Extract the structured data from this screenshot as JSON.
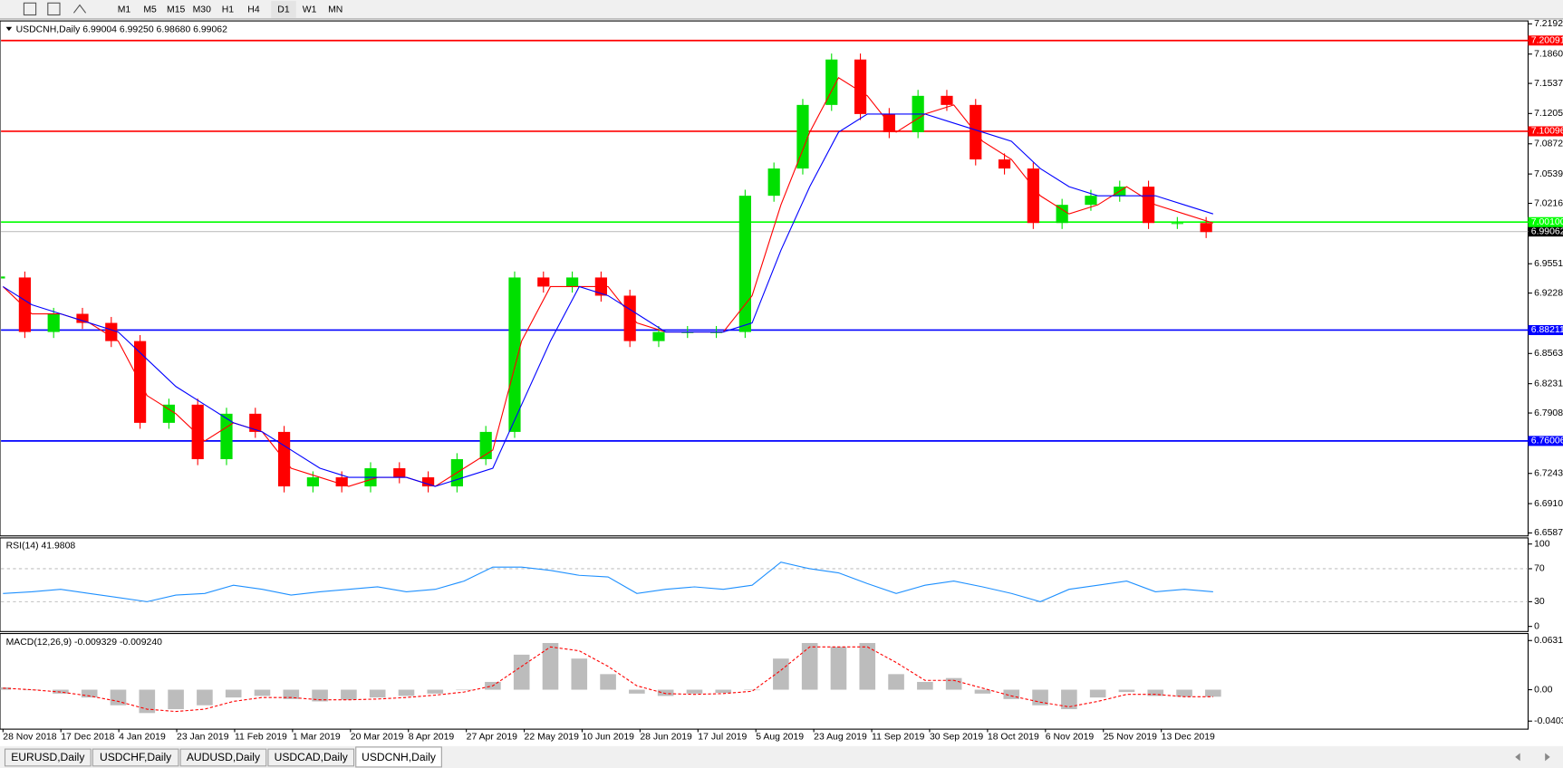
{
  "toolbar": {
    "timeframes": [
      "M1",
      "M5",
      "M15",
      "M30",
      "H1",
      "H4",
      "D1",
      "W1",
      "MN"
    ]
  },
  "chart_data": {
    "type": "candlestick",
    "header": "USDCNH,Daily  6.99004 6.99250 6.98680 6.99062",
    "x_labels": [
      "28 Nov 2018",
      "17 Dec 2018",
      "4 Jan 2019",
      "23 Jan 2019",
      "11 Feb 2019",
      "1 Mar 2019",
      "20 Mar 2019",
      "8 Apr 2019",
      "27 Apr 2019",
      "22 May 2019",
      "10 Jun 2019",
      "28 Jun 2019",
      "17 Jul 2019",
      "5 Aug 2019",
      "23 Aug 2019",
      "11 Sep 2019",
      "30 Sep 2019",
      "18 Oct 2019",
      "6 Nov 2019",
      "25 Nov 2019",
      "13 Dec 2019"
    ],
    "close": [
      6.94,
      6.88,
      6.9,
      6.89,
      6.87,
      6.78,
      6.8,
      6.74,
      6.79,
      6.77,
      6.71,
      6.72,
      6.71,
      6.73,
      6.72,
      6.71,
      6.74,
      6.77,
      6.94,
      6.93,
      6.94,
      6.92,
      6.87,
      6.88,
      6.88,
      6.88,
      7.03,
      7.06,
      7.13,
      7.18,
      7.12,
      7.1,
      7.14,
      7.13,
      7.07,
      7.06,
      7.0,
      7.02,
      7.03,
      7.04,
      7.0,
      7.0,
      6.99
    ],
    "up_color": "#00e000",
    "down_color": "#ff0000",
    "ma_fast": {
      "color": "#ff0000",
      "values": [
        6.93,
        6.9,
        6.9,
        6.89,
        6.87,
        6.81,
        6.79,
        6.76,
        6.78,
        6.77,
        6.73,
        6.72,
        6.71,
        6.72,
        6.72,
        6.71,
        6.73,
        6.75,
        6.87,
        6.93,
        6.93,
        6.93,
        6.89,
        6.88,
        6.88,
        6.88,
        6.92,
        7.02,
        7.1,
        7.16,
        7.14,
        7.1,
        7.12,
        7.13,
        7.09,
        7.07,
        7.03,
        7.01,
        7.02,
        7.04,
        7.02,
        7.01,
        7.0
      ]
    },
    "ma_slow": {
      "color": "#0000ff",
      "values": [
        6.93,
        6.91,
        6.9,
        6.89,
        6.88,
        6.85,
        6.82,
        6.8,
        6.78,
        6.77,
        6.75,
        6.73,
        6.72,
        6.72,
        6.72,
        6.71,
        6.72,
        6.73,
        6.8,
        6.87,
        6.93,
        6.92,
        6.9,
        6.88,
        6.88,
        6.88,
        6.89,
        6.97,
        7.04,
        7.1,
        7.12,
        7.12,
        7.12,
        7.11,
        7.1,
        7.09,
        7.06,
        7.04,
        7.03,
        7.03,
        7.03,
        7.02,
        7.01
      ]
    },
    "ylim": [
      6.6555,
      7.2214
    ],
    "yticks": [
      {
        "value": 7.21925,
        "label": "7.21925"
      },
      {
        "value": 7.186,
        "label": "7.18600"
      },
      {
        "value": 7.1537,
        "label": "7.15370"
      },
      {
        "value": 7.12055,
        "label": "7.12055"
      },
      {
        "value": 7.0872,
        "label": "7.08720"
      },
      {
        "value": 7.05395,
        "label": "7.05395"
      },
      {
        "value": 7.02165,
        "label": "7.02165"
      },
      {
        "value": 6.95515,
        "label": "6.95515"
      },
      {
        "value": 6.92285,
        "label": "6.92285"
      },
      {
        "value": 6.85635,
        "label": "6.85635"
      },
      {
        "value": 6.8231,
        "label": "6.82310"
      },
      {
        "value": 6.7908,
        "label": "6.79080"
      },
      {
        "value": 6.7243,
        "label": "6.72430"
      },
      {
        "value": 6.69105,
        "label": "6.69105"
      },
      {
        "value": 6.65875,
        "label": "6.65875"
      }
    ],
    "levels": [
      {
        "value": 7.20091,
        "label": "7.20091",
        "color": "#ff0000"
      },
      {
        "value": 7.10096,
        "label": "7.10096",
        "color": "#ff0000"
      },
      {
        "value": 7.001,
        "label": "7.00100",
        "color": "#00ff00"
      },
      {
        "value": 6.88211,
        "label": "6.88211",
        "color": "#0000ff"
      },
      {
        "value": 6.76006,
        "label": "6.76006",
        "color": "#0000ff"
      }
    ],
    "current": {
      "value": 6.99062,
      "label": "6.99062"
    },
    "rsi": {
      "label": "RSI(14) 41.9808",
      "color": "#1e90ff",
      "ylim": [
        -6.2,
        107.4
      ],
      "yticks": [
        100,
        70,
        30,
        0
      ],
      "levels": [
        70,
        30
      ],
      "values": [
        40,
        42,
        45,
        40,
        35,
        30,
        38,
        40,
        50,
        45,
        38,
        42,
        45,
        48,
        42,
        45,
        55,
        72,
        72,
        68,
        62,
        60,
        40,
        45,
        48,
        45,
        50,
        78,
        70,
        65,
        52,
        40,
        50,
        55,
        48,
        40,
        30,
        45,
        50,
        55,
        42,
        45,
        42
      ]
    },
    "macd": {
      "label": "MACD(12,26,9) -0.009329 -0.009240",
      "hist_color": "#a0a0a0",
      "signal_color": "#ff0000",
      "ylim": [
        -0.0507,
        0.0722
      ],
      "yticks": [
        {
          "value": 0.063184,
          "label": "0.063184"
        },
        {
          "value": 0,
          "label": "0.00"
        },
        {
          "value": -0.040355,
          "label": "-0.040355"
        }
      ],
      "values": [
        0.003,
        0.0,
        -0.005,
        -0.01,
        -0.02,
        -0.03,
        -0.025,
        -0.02,
        -0.01,
        -0.008,
        -0.012,
        -0.015,
        -0.013,
        -0.01,
        -0.008,
        -0.005,
        0.0,
        0.01,
        0.045,
        0.06,
        0.04,
        0.02,
        -0.005,
        -0.008,
        -0.005,
        -0.004,
        0.0,
        0.04,
        0.06,
        0.055,
        0.06,
        0.02,
        0.01,
        0.015,
        -0.005,
        -0.012,
        -0.02,
        -0.025,
        -0.01,
        -0.003,
        -0.008,
        -0.009,
        -0.009
      ],
      "signal": [
        0.002,
        0.0,
        -0.003,
        -0.008,
        -0.015,
        -0.025,
        -0.028,
        -0.025,
        -0.015,
        -0.01,
        -0.01,
        -0.013,
        -0.013,
        -0.012,
        -0.01,
        -0.007,
        -0.003,
        0.005,
        0.03,
        0.055,
        0.05,
        0.03,
        0.005,
        -0.005,
        -0.006,
        -0.005,
        -0.002,
        0.025,
        0.055,
        0.055,
        0.055,
        0.035,
        0.012,
        0.012,
        0.002,
        -0.008,
        -0.016,
        -0.022,
        -0.015,
        -0.006,
        -0.006,
        -0.009,
        -0.009
      ]
    }
  },
  "tabs": [
    "EURUSD,Daily",
    "USDCHF,Daily",
    "AUDUSD,Daily",
    "USDCAD,Daily",
    "USDCNH,Daily"
  ],
  "active_tab": 4
}
